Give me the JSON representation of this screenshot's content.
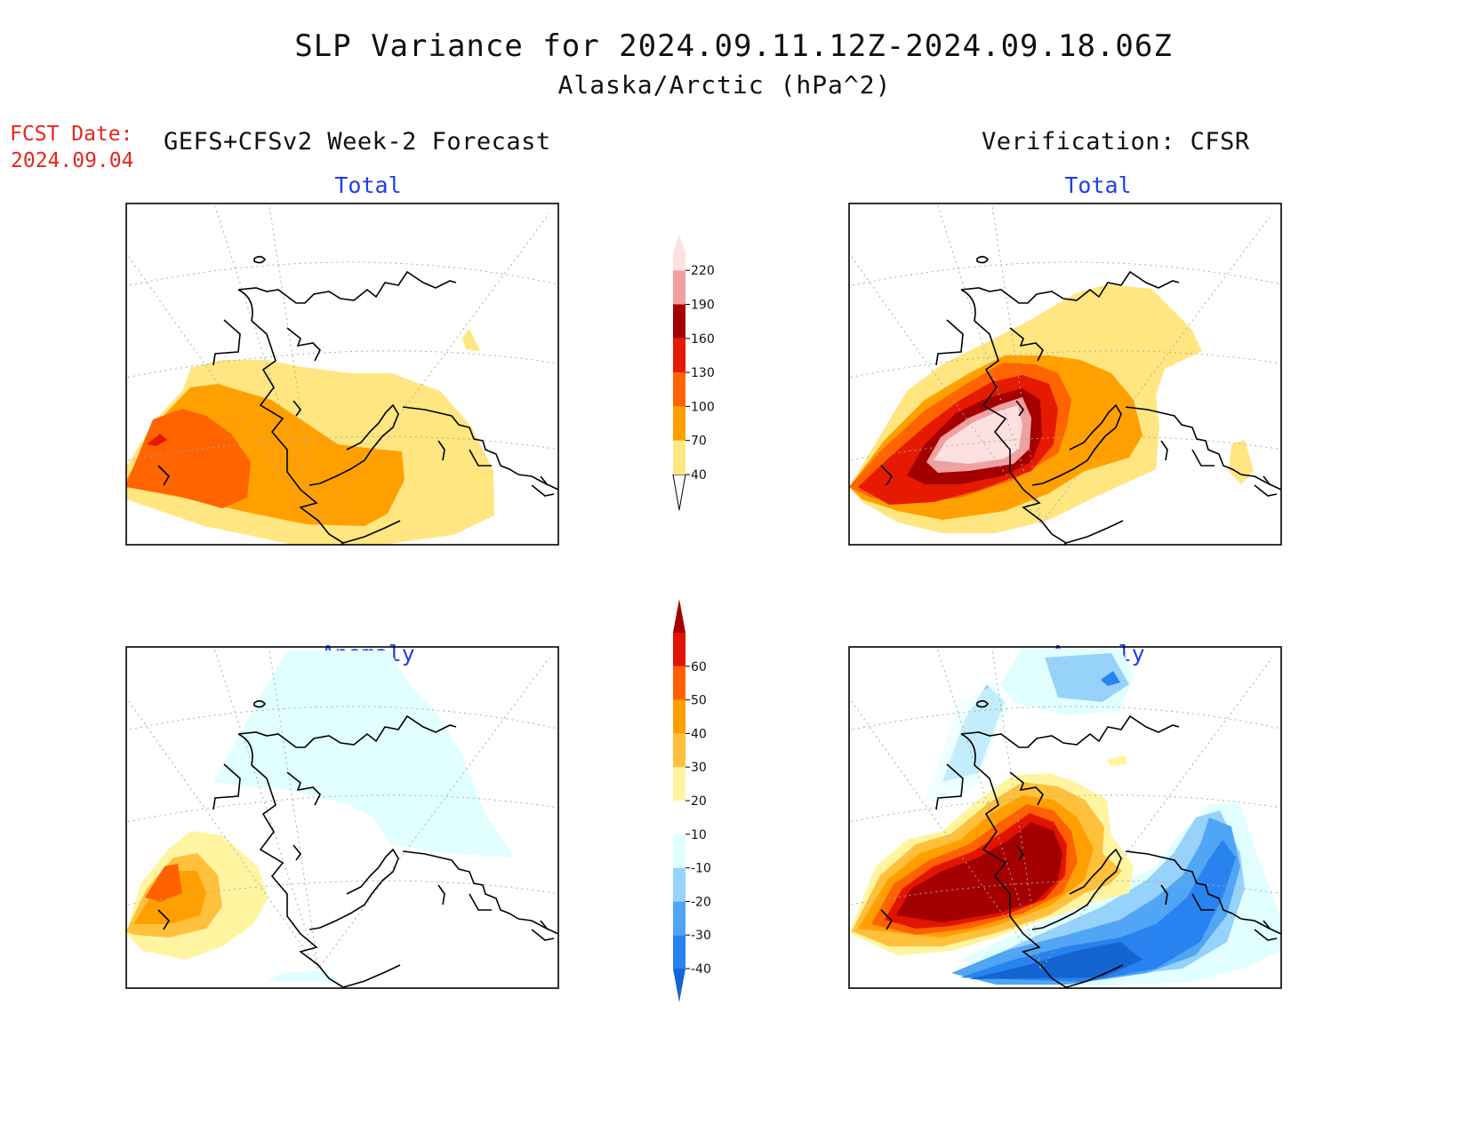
{
  "header": {
    "title": "SLP Variance for 2024.09.11.12Z-2024.09.18.06Z",
    "subtitle": "Alaska/Arctic (hPa^2)",
    "fcst_label": "FCST Date:",
    "fcst_date": "2024.09.04",
    "left_heading": "GEFS+CFSv2 Week-2 Forecast",
    "right_heading": "Verification: CFSR"
  },
  "panels": {
    "top_left": {
      "title": "Total"
    },
    "top_right": {
      "title": "Total"
    },
    "bottom_left": {
      "title": "Anomaly"
    },
    "bottom_right": {
      "title": "Anomaly"
    }
  },
  "colorbars": {
    "total": {
      "labels": [
        "40",
        "70",
        "100",
        "130",
        "160",
        "190",
        "220"
      ],
      "colors": [
        "#ffe680",
        "#ffa000",
        "#ff6400",
        "#e51a00",
        "#a50000",
        "#f0a0a0",
        "#fde0e0"
      ]
    },
    "anomaly": {
      "labels": [
        "-40",
        "-30",
        "-20",
        "-10",
        "10",
        "20",
        "30",
        "40",
        "50",
        "60"
      ],
      "colors": [
        "#1464d2",
        "#2882f0",
        "#50a5f5",
        "#96d2fa",
        "#e1ffff",
        "#ffffff",
        "#fff5a0",
        "#ffc03c",
        "#ffa000",
        "#ff6000",
        "#e11400",
        "#a50000"
      ]
    }
  }
}
